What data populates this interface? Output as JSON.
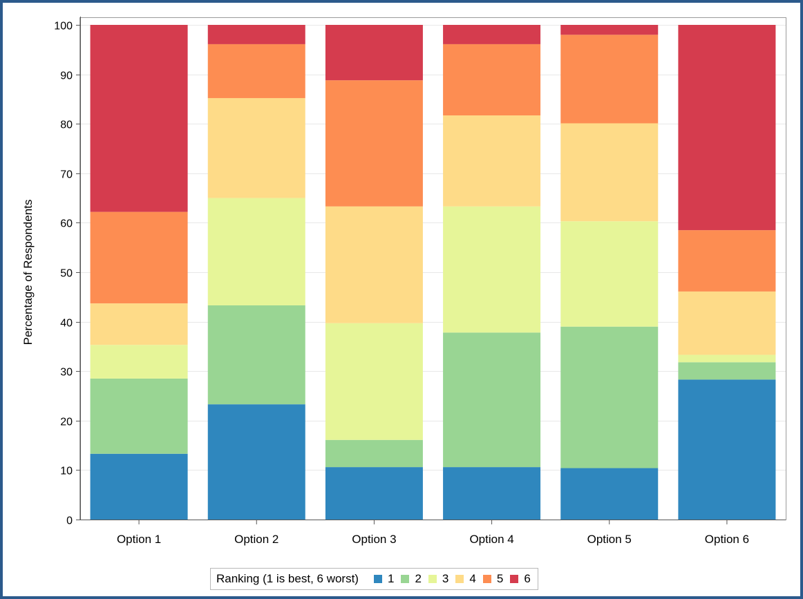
{
  "chart_data": {
    "type": "bar",
    "stacked": true,
    "categories": [
      "Option 1",
      "Option 2",
      "Option 3",
      "Option 4",
      "Option 5",
      "Option 6"
    ],
    "series": [
      {
        "name": "1",
        "color": "#2f87be",
        "values": [
          13.3,
          23.3,
          10.6,
          10.6,
          10.4,
          28.3
        ]
      },
      {
        "name": "2",
        "color": "#99d593",
        "values": [
          15.2,
          20.0,
          5.5,
          27.2,
          28.6,
          3.5
        ]
      },
      {
        "name": "3",
        "color": "#e6f598",
        "values": [
          6.8,
          21.7,
          23.6,
          25.5,
          21.3,
          1.5
        ]
      },
      {
        "name": "4",
        "color": "#fedb88",
        "values": [
          8.4,
          20.2,
          23.6,
          18.4,
          19.8,
          12.8
        ]
      },
      {
        "name": "5",
        "color": "#fd8d52",
        "values": [
          18.5,
          10.9,
          25.5,
          14.4,
          17.9,
          12.4
        ]
      },
      {
        "name": "6",
        "color": "#d53c4e",
        "values": [
          37.8,
          3.9,
          11.2,
          3.9,
          2.0,
          41.5
        ]
      }
    ],
    "xlabel": "",
    "ylabel": "Percentage of Respondents",
    "ylim": [
      0,
      100
    ],
    "yticks": [
      0,
      10,
      20,
      30,
      40,
      50,
      60,
      70,
      80,
      90,
      100
    ],
    "grid": true,
    "legend": {
      "title": "Ranking (1 is best, 6 worst)",
      "placement": "bottom-center"
    }
  }
}
